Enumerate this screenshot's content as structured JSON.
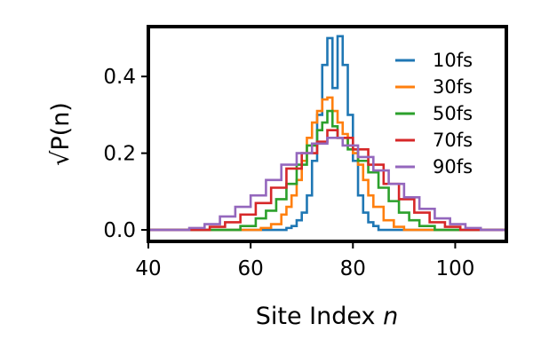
{
  "chart_data": {
    "type": "line",
    "style": "step",
    "xlabel": "Site Index",
    "xlabel_var": "n",
    "ylabel": "√P(n)",
    "xlim": [
      40,
      110
    ],
    "ylim": [
      -0.03,
      0.53
    ],
    "x_ticks": [
      40,
      60,
      80,
      100
    ],
    "x_tick_labels": [
      "40",
      "60",
      "80",
      "100"
    ],
    "y_ticks": [
      0.0,
      0.2,
      0.4
    ],
    "y_tick_labels": [
      "0.0",
      "0.2",
      "0.4"
    ],
    "grid": false,
    "legend_position": "top-right",
    "series": [
      {
        "name": "10fs",
        "color": "#1f77b4",
        "x": [
          40,
          66,
          67,
          68,
          69,
          70,
          71,
          72,
          73,
          74,
          75,
          76,
          77,
          78,
          79,
          80,
          81,
          82,
          83,
          84,
          85,
          110
        ],
        "y": [
          0.0,
          0.0,
          0.005,
          0.01,
          0.025,
          0.045,
          0.09,
          0.18,
          0.3,
          0.43,
          0.5,
          0.37,
          0.505,
          0.43,
          0.3,
          0.18,
          0.09,
          0.045,
          0.02,
          0.01,
          0.0,
          0.0
        ]
      },
      {
        "name": "30fs",
        "color": "#ff7f0e",
        "x": [
          40,
          60,
          62,
          64,
          66,
          67,
          68,
          69,
          70,
          71,
          72,
          73,
          74,
          75,
          76,
          77,
          78,
          79,
          80,
          81,
          82,
          83,
          84,
          86,
          88,
          90,
          110
        ],
        "y": [
          0.0,
          0.0,
          0.005,
          0.015,
          0.04,
          0.06,
          0.09,
          0.13,
          0.18,
          0.24,
          0.28,
          0.31,
          0.34,
          0.345,
          0.31,
          0.28,
          0.25,
          0.22,
          0.2,
          0.17,
          0.13,
          0.09,
          0.06,
          0.025,
          0.008,
          0.0,
          0.0
        ]
      },
      {
        "name": "50fs",
        "color": "#2ca02c",
        "x": [
          40,
          55,
          58,
          61,
          63,
          65,
          67,
          69,
          71,
          73,
          74,
          75,
          76,
          77,
          79,
          81,
          83,
          85,
          87,
          89,
          91,
          93,
          96,
          110
        ],
        "y": [
          0.0,
          0.0,
          0.01,
          0.03,
          0.05,
          0.08,
          0.12,
          0.17,
          0.22,
          0.26,
          0.28,
          0.31,
          0.27,
          0.24,
          0.21,
          0.18,
          0.15,
          0.11,
          0.075,
          0.045,
          0.025,
          0.01,
          0.0,
          0.0
        ]
      },
      {
        "name": "70fs",
        "color": "#d62728",
        "x": [
          40,
          49,
          52,
          55,
          58,
          61,
          64,
          67,
          70,
          73,
          75,
          77,
          80,
          83,
          86,
          89,
          92,
          95,
          98,
          101,
          110
        ],
        "y": [
          0.0,
          0.0,
          0.008,
          0.02,
          0.04,
          0.07,
          0.11,
          0.16,
          0.2,
          0.23,
          0.26,
          0.24,
          0.21,
          0.17,
          0.12,
          0.08,
          0.045,
          0.02,
          0.008,
          0.0,
          0.0
        ]
      },
      {
        "name": "90fs",
        "color": "#9467bd",
        "x": [
          40,
          45,
          48,
          51,
          54,
          57,
          60,
          63,
          66,
          69,
          72,
          75,
          78,
          81,
          84,
          87,
          90,
          93,
          96,
          99,
          102,
          105,
          110
        ],
        "y": [
          0.0,
          0.0,
          0.005,
          0.015,
          0.035,
          0.06,
          0.09,
          0.13,
          0.17,
          0.2,
          0.225,
          0.24,
          0.22,
          0.19,
          0.155,
          0.12,
          0.085,
          0.055,
          0.03,
          0.015,
          0.005,
          0.0,
          0.0
        ]
      }
    ]
  }
}
